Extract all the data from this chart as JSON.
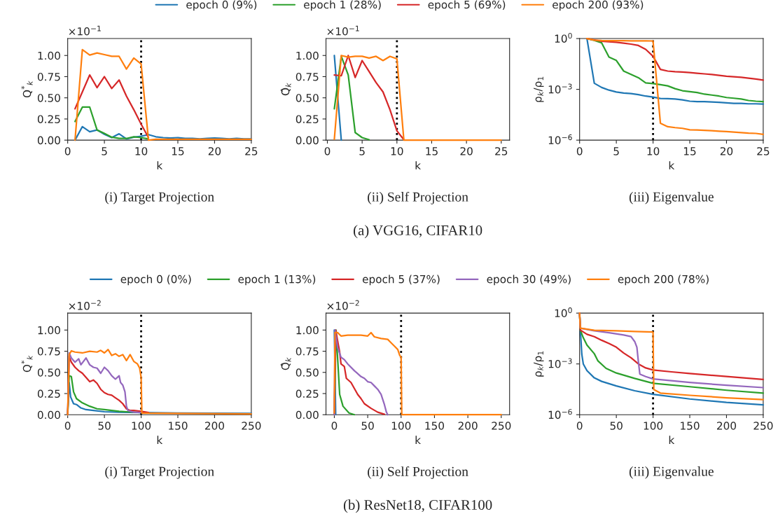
{
  "chart_data": [
    {
      "type": "line",
      "title": "(i) Target Projection",
      "xlabel": "k",
      "ylabel": "Q$^{*}$$_{k}$",
      "annotations": [
        "×10$^{−1}$"
      ],
      "legend": "top",
      "x": [
        1,
        2,
        3,
        4,
        5,
        6,
        7,
        8,
        9,
        10,
        11,
        12,
        13,
        14,
        15,
        16,
        17,
        18,
        19,
        20,
        21,
        22,
        23,
        24,
        25
      ],
      "xlim": [
        0,
        25
      ],
      "xticks": [
        0,
        5,
        10,
        15,
        20,
        25
      ],
      "ylim": [
        0,
        1.2
      ],
      "yticks": [
        {
          "value": 0,
          "label": "0.00"
        },
        {
          "value": 0.25,
          "label": "0.25"
        },
        {
          "value": 0.5,
          "label": "0.50"
        },
        {
          "value": 0.75,
          "label": "0.75"
        },
        {
          "value": 1,
          "label": "1.00"
        }
      ],
      "ref_lines": [
        {
          "axis": "x",
          "value": 10,
          "color": "#000000",
          "line_style": "dotted"
        }
      ],
      "series": [
        {
          "name": "epoch 0 (9%)",
          "color": "#1f77b4",
          "values": [
            0,
            0.16,
            0.1,
            0.12,
            0.07,
            0.03,
            0.075,
            0.015,
            0.035,
            0.045,
            0.065,
            0.04,
            0.03,
            0.025,
            0.03,
            0.02,
            0.02,
            0.015,
            0.02,
            0.025,
            0.02,
            0.015,
            0.02,
            0.015,
            0.015
          ]
        },
        {
          "name": "epoch 1 (28%)",
          "color": "#2ca02c",
          "values": [
            0.22,
            0.39,
            0.39,
            0.12,
            0.08,
            0.035,
            0.02,
            0.02,
            0.04,
            0.03,
            0.015,
            null,
            null,
            null,
            null,
            null,
            null,
            null,
            null,
            null,
            null,
            null,
            null,
            null,
            null
          ]
        },
        {
          "name": "epoch 5 (69%)",
          "color": "#d62728",
          "values": [
            0.37,
            0.57,
            0.77,
            0.62,
            0.75,
            0.61,
            0.71,
            0.52,
            0.36,
            0.19,
            0.03,
            null,
            null,
            null,
            null,
            null,
            null,
            null,
            null,
            null,
            null,
            null,
            null,
            null,
            null
          ]
        },
        {
          "name": "epoch 200 (93%)",
          "color": "#ff7f0e",
          "values": [
            0,
            1.07,
            1.005,
            1.03,
            1.01,
            0.99,
            0.99,
            0.84,
            0.97,
            0.9,
            0,
            0.01,
            0.01,
            0.01,
            0.01,
            0.01,
            0.01,
            0.01,
            0.01,
            0.01,
            0.01,
            0.01,
            0.01,
            0.01,
            0.01
          ]
        }
      ]
    },
    {
      "type": "line",
      "title": "(ii) Self Projection",
      "xlabel": "k",
      "ylabel": "Q̂$_{k}$",
      "annotations": [
        "×10$^{−1}$",
        "(a) VGG16, CIFAR10"
      ],
      "x": [
        1,
        2,
        3,
        4,
        5,
        6,
        7,
        8,
        9,
        10,
        11,
        12,
        13,
        14,
        15,
        16,
        17,
        18,
        19,
        20,
        21,
        22,
        23,
        24,
        25
      ],
      "xlim": [
        -0.2,
        26.2
      ],
      "xticks": [
        0,
        5,
        10,
        15,
        20,
        25
      ],
      "ylim": [
        0,
        1.2
      ],
      "yticks": [
        {
          "value": 0,
          "label": "0.00"
        },
        {
          "value": 0.25,
          "label": "0.25"
        },
        {
          "value": 0.5,
          "label": "0.50"
        },
        {
          "value": 0.75,
          "label": "0.75"
        },
        {
          "value": 1,
          "label": "1.00"
        }
      ],
      "ref_lines": [
        {
          "axis": "x",
          "value": 10,
          "color": "#000000",
          "line_style": "dotted"
        }
      ],
      "series": [
        {
          "color": "#1f77b4",
          "values": [
            1.0,
            0,
            null,
            null,
            null,
            null,
            null,
            null,
            null,
            null,
            null,
            null,
            null,
            null,
            null,
            null,
            null,
            null,
            null,
            null,
            null,
            null,
            null,
            null,
            null
          ]
        },
        {
          "color": "#2ca02c",
          "values": [
            0.37,
            0.99,
            0.77,
            0.09,
            0.03,
            0.005,
            null,
            null,
            null,
            null,
            null,
            null,
            null,
            null,
            null,
            null,
            null,
            null,
            null,
            null,
            null,
            null,
            null,
            null,
            null
          ]
        },
        {
          "color": "#d62728",
          "values": [
            0.77,
            0.76,
            1.0,
            0.74,
            0.94,
            0.81,
            0.68,
            0.57,
            0.36,
            0.11,
            0.005,
            null,
            null,
            null,
            null,
            null,
            null,
            null,
            null,
            null,
            null,
            null,
            null,
            null,
            null
          ]
        },
        {
          "color": "#ff7f0e",
          "values": [
            0.01,
            1.0,
            0.98,
            0.99,
            0.99,
            0.97,
            0.99,
            0.94,
            0.99,
            0.96,
            0,
            0,
            0,
            0,
            0,
            0,
            0,
            0,
            0,
            0,
            0,
            0,
            0,
            0,
            0
          ]
        }
      ]
    },
    {
      "type": "line",
      "title": "(iii) Eigenvalue",
      "xlabel": "k",
      "ylabel": "ρ$_{k}$/ρ$_{1}$",
      "log": "y",
      "x": [
        1,
        2,
        3,
        4,
        5,
        6,
        7,
        8,
        9,
        10,
        11,
        12,
        13,
        14,
        15,
        16,
        17,
        18,
        19,
        20,
        21,
        22,
        23,
        24,
        25
      ],
      "xlim": [
        0,
        25
      ],
      "xticks": [
        0,
        5,
        10,
        15,
        20,
        25
      ],
      "ylim": [
        1e-06,
        1
      ],
      "yticks": [
        {
          "value": 1,
          "label": "10$^{0}$"
        },
        {
          "value": 0.001,
          "label": "10$^{−3}$"
        },
        {
          "value": 1e-06,
          "label": "10$^{−6}$"
        }
      ],
      "ref_lines": [
        {
          "axis": "x",
          "value": 10,
          "color": "#000000",
          "line_style": "dotted"
        }
      ],
      "series": [
        {
          "color": "#1f77b4",
          "values": [
            1,
            0.0023,
            0.0013,
            0.0009,
            0.0007,
            0.0006,
            0.00056,
            0.00049,
            0.0004,
            0.00035,
            0.00029,
            0.00028,
            0.00027,
            0.00024,
            0.0002,
            0.00019,
            0.00019,
            0.00018,
            0.00017,
            0.00016,
            0.00015,
            0.00015,
            0.00014,
            0.00014,
            0.000135
          ]
        },
        {
          "color": "#2ca02c",
          "values": [
            1,
            0.78,
            0.56,
            0.08,
            0.051,
            0.012,
            0.0076,
            0.0049,
            0.0024,
            0.0022,
            0.0019,
            0.0016,
            0.0011,
            0.00083,
            0.00073,
            0.00065,
            0.00052,
            0.00046,
            0.0004,
            0.00033,
            0.0003,
            0.00027,
            0.00022,
            0.0002,
            0.00019
          ]
        },
        {
          "color": "#d62728",
          "values": [
            1,
            0.83,
            0.7,
            0.64,
            0.6,
            0.53,
            0.47,
            0.39,
            0.23,
            0.09,
            0.015,
            0.012,
            0.011,
            0.0105,
            0.0098,
            0.009,
            0.0082,
            0.0076,
            0.0067,
            0.0059,
            0.0055,
            0.0052,
            0.0046,
            0.0041,
            0.0035
          ]
        },
        {
          "color": "#ff7f0e",
          "values": [
            1,
            0.8,
            0.76,
            0.75,
            0.74,
            0.74,
            0.73,
            0.73,
            0.73,
            0.72,
            1e-05,
            6.2e-06,
            5.5e-06,
            5e-06,
            4.1e-06,
            4e-06,
            3.8e-06,
            3.6e-06,
            3.4e-06,
            3.2e-06,
            3e-06,
            2.8e-06,
            2.6e-06,
            2.5e-06,
            2.2e-06
          ]
        }
      ]
    },
    {
      "type": "line",
      "title": "(i) Target Projection",
      "xlabel": "k",
      "ylabel": "Q$^{*}$$_{k}$",
      "annotations": [
        "×10$^{−2}$"
      ],
      "legend": "top",
      "xlim": [
        0,
        250
      ],
      "xticks": [
        0,
        50,
        100,
        150,
        200,
        250
      ],
      "ylim": [
        0,
        1.2
      ],
      "yticks": [
        {
          "value": 0,
          "label": "0.00"
        },
        {
          "value": 0.25,
          "label": "0.25"
        },
        {
          "value": 0.5,
          "label": "0.50"
        },
        {
          "value": 0.75,
          "label": "0.75"
        },
        {
          "value": 1,
          "label": "1.00"
        }
      ],
      "ref_lines": [
        {
          "axis": "x",
          "value": 100,
          "color": "#000000",
          "line_style": "dotted"
        }
      ],
      "series": [
        {
          "name": "epoch 0 (0%)",
          "color": "#1f77b4",
          "x": [
            0,
            2,
            4,
            8,
            12,
            18,
            25,
            35,
            50,
            70,
            100,
            150,
            250
          ],
          "values": [
            0,
            0.38,
            0.21,
            0.13,
            0.12,
            0.08,
            0.06,
            0.05,
            0.035,
            0.03,
            0.025,
            0.02,
            0.015
          ]
        },
        {
          "name": "epoch 1 (13%)",
          "color": "#2ca02c",
          "x": [
            0,
            2,
            5,
            8,
            12,
            20,
            30,
            40,
            50,
            60,
            70,
            80,
            100
          ],
          "values": [
            0,
            0.46,
            0.45,
            0.27,
            0.19,
            0.14,
            0.1,
            0.07,
            0.06,
            0.05,
            0.04,
            0.035,
            0.025
          ]
        },
        {
          "name": "epoch 5 (37%)",
          "color": "#d62728",
          "x": [
            0,
            2,
            5,
            10,
            15,
            20,
            25,
            30,
            35,
            40,
            45,
            50,
            55,
            60,
            65,
            70,
            75,
            80,
            85,
            90,
            100,
            110
          ],
          "values": [
            0,
            0.69,
            0.62,
            0.56,
            0.52,
            0.49,
            0.44,
            0.39,
            0.41,
            0.37,
            0.3,
            0.26,
            0.24,
            0.23,
            0.2,
            0.17,
            0.13,
            0.07,
            0.05,
            0.05,
            0.04,
            0.025
          ]
        },
        {
          "name": "epoch 30 (49%)",
          "color": "#9467bd",
          "x": [
            0,
            2,
            5,
            10,
            15,
            18,
            25,
            30,
            35,
            40,
            45,
            50,
            55,
            60,
            65,
            70,
            72,
            75,
            78,
            80,
            82,
            90,
            100
          ],
          "values": [
            0,
            0.73,
            0.67,
            0.62,
            0.66,
            0.59,
            0.67,
            0.59,
            0.56,
            0.55,
            0.49,
            0.56,
            0.52,
            0.46,
            0.42,
            0.46,
            0.38,
            0.35,
            0.27,
            0.1,
            0.05,
            0.03,
            0.025
          ]
        },
        {
          "name": "epoch 200 (78%)",
          "color": "#ff7f0e",
          "x": [
            0,
            2,
            5,
            10,
            20,
            30,
            40,
            45,
            50,
            55,
            60,
            65,
            70,
            75,
            80,
            85,
            90,
            95,
            98,
            100,
            101,
            150,
            250
          ],
          "values": [
            0,
            0.71,
            0.755,
            0.74,
            0.73,
            0.75,
            0.74,
            0.76,
            0.73,
            0.77,
            0.7,
            0.72,
            0.69,
            0.71,
            0.64,
            0.71,
            0.63,
            0.6,
            0.55,
            0.44,
            0.02,
            0.015,
            0.01
          ]
        }
      ]
    },
    {
      "type": "line",
      "title": "(ii) Self Projection",
      "xlabel": "k",
      "ylabel": "Q̂$_{k}$",
      "annotations": [
        "×10$^{−2}$",
        "(b) ResNet18, CIFAR100"
      ],
      "xlim": [
        -12.5,
        262.5
      ],
      "xticks": [
        0,
        50,
        100,
        150,
        200,
        250
      ],
      "ylim": [
        0,
        1.2
      ],
      "yticks": [
        {
          "value": 0,
          "label": "0.00"
        },
        {
          "value": 0.25,
          "label": "0.25"
        },
        {
          "value": 0.5,
          "label": "0.50"
        },
        {
          "value": 0.75,
          "label": "0.75"
        },
        {
          "value": 1,
          "label": "1.00"
        }
      ],
      "ref_lines": [
        {
          "axis": "x",
          "value": 100,
          "color": "#000000",
          "line_style": "dotted"
        }
      ],
      "series": [
        {
          "color": "#1f77b4",
          "x": [
            0,
            2
          ],
          "values": [
            1.0,
            0
          ]
        },
        {
          "color": "#2ca02c",
          "x": [
            0,
            2.5,
            6,
            8,
            13,
            22,
            30
          ],
          "values": [
            0,
            1.0,
            0.52,
            0.24,
            0.1,
            0.02,
            0
          ]
        },
        {
          "color": "#d62728",
          "x": [
            0,
            2,
            8,
            10,
            15,
            18,
            25,
            30,
            35,
            40,
            45,
            55,
            65,
            75
          ],
          "values": [
            0,
            1.0,
            0.74,
            0.6,
            0.57,
            0.43,
            0.38,
            0.31,
            0.24,
            0.19,
            0.13,
            0.075,
            0.03,
            0.005
          ]
        },
        {
          "color": "#9467bd",
          "x": [
            0,
            1,
            5,
            10,
            15,
            20,
            30,
            40,
            45,
            50,
            55,
            60,
            65,
            70,
            75,
            78,
            80
          ],
          "values": [
            0,
            1.0,
            0.79,
            0.68,
            0.65,
            0.6,
            0.52,
            0.45,
            0.43,
            0.39,
            0.38,
            0.34,
            0.3,
            0.24,
            0.12,
            0.03,
            0
          ]
        },
        {
          "color": "#ff7f0e",
          "x": [
            0,
            1,
            5,
            10,
            20,
            30,
            40,
            50,
            55,
            60,
            70,
            80,
            85,
            90,
            95,
            98,
            100,
            101,
            250
          ],
          "values": [
            0.02,
            0.97,
            0.97,
            0.93,
            0.94,
            0.94,
            0.94,
            0.93,
            0.97,
            0.92,
            0.9,
            0.89,
            0.85,
            0.81,
            0.77,
            0.7,
            0.68,
            0,
            0
          ]
        }
      ]
    },
    {
      "type": "line",
      "title": "(iii) Eigenvalue",
      "xlabel": "k",
      "ylabel": "ρ$_{k}$/ρ$_{1}$",
      "log": "y",
      "xlim": [
        0,
        250
      ],
      "xticks": [
        0,
        50,
        100,
        150,
        200,
        250
      ],
      "ylim": [
        1e-06,
        1
      ],
      "yticks": [
        {
          "value": 1,
          "label": "10$^{0}$"
        },
        {
          "value": 0.001,
          "label": "10$^{−3}$"
        },
        {
          "value": 1e-06,
          "label": "10$^{−6}$"
        }
      ],
      "ref_lines": [
        {
          "axis": "x",
          "value": 100,
          "color": "#000000",
          "line_style": "dotted"
        }
      ],
      "series": [
        {
          "color": "#1f77b4",
          "x": [
            0,
            1,
            3,
            5,
            10,
            20,
            30,
            50,
            75,
            100,
            150,
            200,
            250
          ],
          "values": [
            1,
            0.1,
            0.0037,
            0.001,
            0.0004,
            0.00015,
            9.3e-05,
            5e-05,
            2.6e-05,
            1.6e-05,
            8.5e-06,
            5.3e-06,
            3.8e-06
          ]
        },
        {
          "color": "#2ca02c",
          "x": [
            0,
            1,
            5,
            10,
            20,
            25,
            36,
            50,
            75,
            100,
            150,
            200,
            250
          ],
          "values": [
            1,
            0.1,
            0.035,
            0.013,
            0.004,
            0.0015,
            0.00055,
            0.00029,
            0.00014,
            7.2e-05,
            4.5e-05,
            2.8e-05,
            1.9e-05
          ]
        },
        {
          "color": "#d62728",
          "x": [
            0,
            1,
            10,
            20,
            30,
            40,
            50,
            60,
            70,
            80,
            90,
            100,
            125,
            150,
            200,
            250
          ],
          "values": [
            1,
            0.1,
            0.056,
            0.041,
            0.025,
            0.016,
            0.0097,
            0.0044,
            0.0023,
            0.001,
            0.00058,
            0.00044,
            0.00034,
            0.00027,
            0.00018,
            0.00012
          ]
        },
        {
          "color": "#9467bd",
          "x": [
            0,
            1,
            20,
            40,
            60,
            70,
            75,
            78,
            80,
            82,
            90,
            100,
            150,
            200,
            250
          ],
          "values": [
            1,
            0.13,
            0.09,
            0.07,
            0.051,
            0.041,
            0.021,
            0.0097,
            0.0014,
            0.00025,
            0.00018,
            0.00013,
            8e-05,
            5.5e-05,
            4e-05
          ]
        },
        {
          "color": "#ff7f0e",
          "x": [
            0,
            1,
            20,
            50,
            75,
            100,
            101,
            110,
            150,
            200,
            250
          ],
          "values": [
            1,
            0.13,
            0.097,
            0.091,
            0.083,
            0.077,
            3.1e-05,
            1.9e-05,
            1.4e-05,
            1e-05,
            7.9e-06
          ]
        }
      ]
    }
  ]
}
